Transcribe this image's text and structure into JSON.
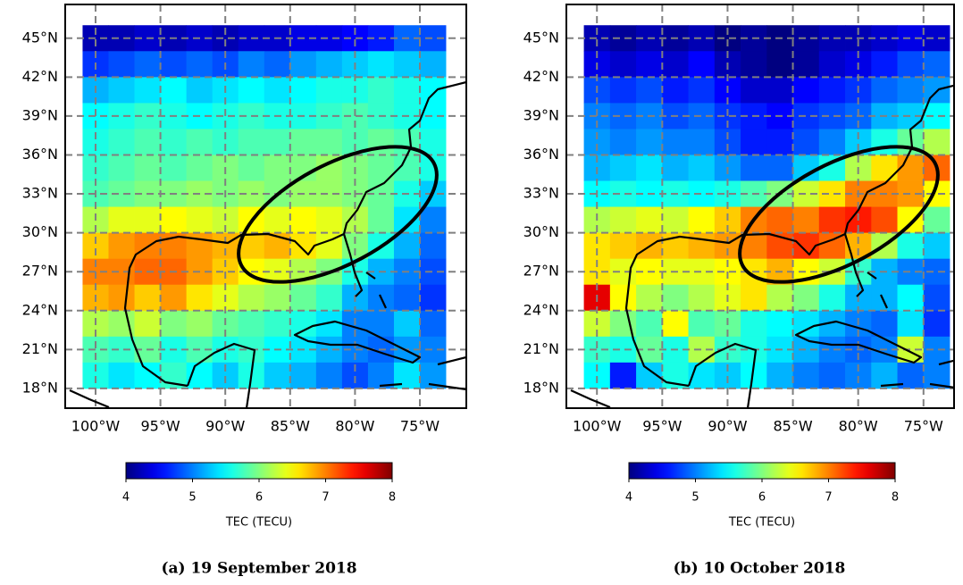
{
  "chart_data": [
    {
      "type": "heatmap",
      "caption": "(a) 19 September 2018",
      "colormap": "jet",
      "grid": true,
      "xlim": [
        -102.34,
        -71.42
      ],
      "ylim": [
        16.48,
        47.6
      ],
      "xticks": [
        {
          "value": -100,
          "label": "100°W"
        },
        {
          "value": -95,
          "label": "95°W"
        },
        {
          "value": -90,
          "label": "90°W"
        },
        {
          "value": -85,
          "label": "85°W"
        },
        {
          "value": -80,
          "label": "80°W"
        },
        {
          "value": -75,
          "label": "75°W"
        }
      ],
      "yticks": [
        {
          "value": 18,
          "label": "18°N"
        },
        {
          "value": 21,
          "label": "21°N"
        },
        {
          "value": 24,
          "label": "24°N"
        },
        {
          "value": 27,
          "label": "27°N"
        },
        {
          "value": 30,
          "label": "30°N"
        },
        {
          "value": 33,
          "label": "33°N"
        },
        {
          "value": 36,
          "label": "36°N"
        },
        {
          "value": 39,
          "label": "39°N"
        },
        {
          "value": 42,
          "label": "42°N"
        },
        {
          "value": 45,
          "label": "45°N"
        }
      ],
      "x": [
        -100,
        -98,
        -96,
        -94,
        -92,
        -90,
        -88,
        -86,
        -84,
        -82,
        -80,
        -78,
        -76,
        -74
      ],
      "y": [
        45,
        43,
        41,
        39,
        37,
        35,
        33,
        31,
        29,
        27,
        25,
        23,
        21,
        19
      ],
      "z": [
        [
          4.2,
          4.2,
          4.3,
          4.2,
          4.3,
          4.2,
          4.3,
          4.3,
          4.4,
          4.4,
          4.5,
          4.6,
          4.9,
          4.8
        ],
        [
          4.7,
          4.8,
          4.9,
          4.8,
          4.9,
          4.8,
          5.0,
          4.9,
          5.1,
          5.2,
          5.3,
          5.4,
          5.3,
          5.2
        ],
        [
          5.2,
          5.3,
          5.4,
          5.5,
          5.3,
          5.4,
          5.5,
          5.4,
          5.5,
          5.6,
          5.6,
          5.7,
          5.6,
          5.5
        ],
        [
          5.5,
          5.6,
          5.7,
          5.6,
          5.5,
          5.6,
          5.7,
          5.6,
          5.6,
          5.7,
          5.8,
          5.7,
          5.6,
          5.5
        ],
        [
          5.6,
          5.7,
          5.8,
          5.7,
          5.8,
          5.7,
          5.8,
          5.8,
          5.9,
          5.9,
          5.8,
          5.9,
          5.8,
          5.6
        ],
        [
          5.7,
          5.8,
          5.9,
          5.8,
          5.9,
          6.0,
          5.9,
          6.0,
          6.0,
          6.1,
          6.0,
          5.9,
          5.8,
          5.6
        ],
        [
          5.8,
          5.9,
          6.0,
          6.0,
          6.1,
          6.0,
          6.1,
          6.0,
          6.1,
          6.1,
          6.0,
          5.9,
          5.6,
          5.3
        ],
        [
          6.2,
          6.4,
          6.4,
          6.5,
          6.4,
          6.3,
          6.5,
          6.4,
          6.5,
          6.4,
          6.2,
          5.9,
          5.4,
          5.0
        ],
        [
          6.7,
          6.9,
          7.0,
          7.0,
          6.9,
          6.8,
          6.7,
          6.8,
          6.6,
          6.4,
          6.0,
          5.6,
          5.2,
          4.9
        ],
        [
          7.0,
          7.0,
          7.1,
          7.1,
          6.9,
          6.7,
          6.5,
          6.4,
          6.2,
          6.0,
          5.6,
          5.2,
          5.0,
          4.8
        ],
        [
          6.8,
          6.9,
          6.7,
          6.9,
          6.6,
          6.4,
          6.2,
          6.1,
          5.9,
          5.7,
          5.2,
          5.0,
          4.9,
          4.7
        ],
        [
          6.2,
          6.1,
          6.3,
          6.0,
          6.1,
          5.9,
          5.8,
          5.7,
          5.6,
          5.4,
          5.0,
          5.0,
          5.3,
          4.9
        ],
        [
          5.8,
          5.7,
          5.9,
          5.6,
          5.8,
          5.6,
          5.7,
          5.5,
          5.4,
          5.2,
          5.0,
          4.9,
          5.1,
          5.0
        ],
        [
          5.6,
          5.4,
          5.5,
          5.7,
          5.5,
          5.3,
          5.6,
          5.3,
          5.2,
          5.0,
          4.8,
          5.0,
          5.4,
          5.1
        ]
      ],
      "colorbar": {
        "label": "TEC (TECU)",
        "lim": [
          4,
          8
        ],
        "ticks": [
          4,
          5,
          6,
          7,
          8
        ]
      }
    },
    {
      "type": "heatmap",
      "caption": "(b) 10 October 2018",
      "colormap": "jet",
      "grid": true,
      "xlim": [
        -102.34,
        -72.66
      ],
      "ylim": [
        16.48,
        47.6
      ],
      "xticks": [
        {
          "value": -100,
          "label": "100°W"
        },
        {
          "value": -95,
          "label": "95°W"
        },
        {
          "value": -90,
          "label": "90°W"
        },
        {
          "value": -85,
          "label": "85°W"
        },
        {
          "value": -80,
          "label": "80°W"
        },
        {
          "value": -75,
          "label": "75°W"
        }
      ],
      "yticks": [
        {
          "value": 18,
          "label": "18°N"
        },
        {
          "value": 21,
          "label": "21°N"
        },
        {
          "value": 24,
          "label": "24°N"
        },
        {
          "value": 27,
          "label": "27°N"
        },
        {
          "value": 30,
          "label": "30°N"
        },
        {
          "value": 33,
          "label": "33°N"
        },
        {
          "value": 36,
          "label": "36°N"
        },
        {
          "value": 39,
          "label": "39°N"
        },
        {
          "value": 42,
          "label": "42°N"
        },
        {
          "value": 45,
          "label": "45°N"
        }
      ],
      "x": [
        -100,
        -98,
        -96,
        -94,
        -92,
        -90,
        -88,
        -86,
        -84,
        -82,
        -80,
        -78,
        -76,
        -74
      ],
      "y": [
        45,
        43,
        41,
        39,
        37,
        35,
        33,
        31,
        29,
        27,
        25,
        23,
        21,
        19
      ],
      "z": [
        [
          4.2,
          4.1,
          4.2,
          4.1,
          4.2,
          4.0,
          4.1,
          4.0,
          4.1,
          4.2,
          4.2,
          4.3,
          4.4,
          4.3
        ],
        [
          4.4,
          4.3,
          4.4,
          4.3,
          4.5,
          4.2,
          4.1,
          4.0,
          4.1,
          4.3,
          4.4,
          4.6,
          4.8,
          4.9
        ],
        [
          4.8,
          4.7,
          4.8,
          4.6,
          4.7,
          4.5,
          4.3,
          4.3,
          4.5,
          4.6,
          4.7,
          4.9,
          5.0,
          5.1
        ],
        [
          5.0,
          4.9,
          5.0,
          4.8,
          4.9,
          4.7,
          4.6,
          4.5,
          4.7,
          4.8,
          4.9,
          5.2,
          5.3,
          5.5
        ],
        [
          5.1,
          5.0,
          5.1,
          5.0,
          5.0,
          4.8,
          4.6,
          4.6,
          4.8,
          5.0,
          5.3,
          5.6,
          5.9,
          6.2
        ],
        [
          5.2,
          5.3,
          5.4,
          5.2,
          5.3,
          5.1,
          4.9,
          4.9,
          5.3,
          5.6,
          6.2,
          6.6,
          6.9,
          7.1
        ],
        [
          5.5,
          5.6,
          5.5,
          5.6,
          5.5,
          5.6,
          5.8,
          6.0,
          6.3,
          6.6,
          7.0,
          7.0,
          6.9,
          6.5
        ],
        [
          6.2,
          6.3,
          6.4,
          6.3,
          6.5,
          6.7,
          7.0,
          7.1,
          7.0,
          7.3,
          7.4,
          7.2,
          6.5,
          5.9
        ],
        [
          6.6,
          6.7,
          6.8,
          6.7,
          6.8,
          6.9,
          7.0,
          7.2,
          7.3,
          7.1,
          6.8,
          6.2,
          5.6,
          5.3
        ],
        [
          6.6,
          6.4,
          6.5,
          6.4,
          6.4,
          6.5,
          6.6,
          6.8,
          6.5,
          6.3,
          5.7,
          5.2,
          5.0,
          4.9
        ],
        [
          7.6,
          6.5,
          6.2,
          6.0,
          6.2,
          6.4,
          6.6,
          6.2,
          6.0,
          5.6,
          5.2,
          5.2,
          5.5,
          4.8
        ],
        [
          6.3,
          6.0,
          5.8,
          6.5,
          5.8,
          5.9,
          5.6,
          5.5,
          5.4,
          5.2,
          5.0,
          4.9,
          5.4,
          4.7
        ],
        [
          5.7,
          5.6,
          5.9,
          5.6,
          6.2,
          5.7,
          5.6,
          5.4,
          5.2,
          5.0,
          4.9,
          5.0,
          6.3,
          5.0
        ],
        [
          5.5,
          4.6,
          5.3,
          5.6,
          5.4,
          5.3,
          5.5,
          5.2,
          5.0,
          4.9,
          5.0,
          5.2,
          4.9,
          5.0
        ]
      ],
      "colorbar": {
        "label": "TEC (TECU)",
        "lim": [
          4,
          8
        ],
        "ticks": [
          4,
          5,
          6,
          7,
          8
        ]
      }
    }
  ]
}
